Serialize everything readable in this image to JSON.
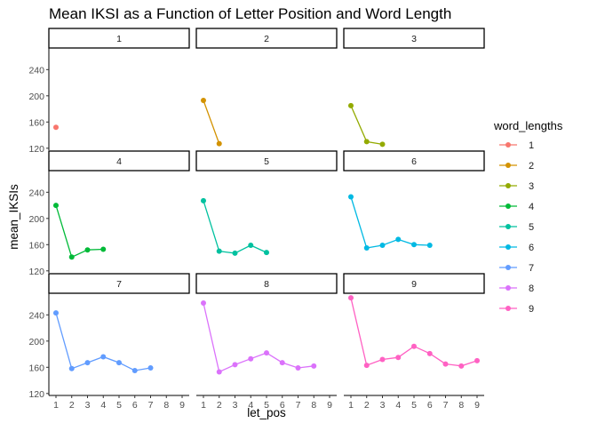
{
  "chart_data": {
    "type": "line",
    "title": "Mean IKSI as a Function of Letter Position and Word Length",
    "xlabel": "let_pos",
    "ylabel": "mean_IKSIs",
    "x_ticks": [
      1,
      2,
      3,
      4,
      5,
      6,
      7,
      8,
      9
    ],
    "y_ticks": [
      120,
      160,
      200,
      240
    ],
    "xlim": [
      0.55,
      9.45
    ],
    "ylim": [
      117,
      273
    ],
    "grid": false,
    "legend": {
      "title": "word_lengths",
      "position": "right",
      "entries": [
        "1",
        "2",
        "3",
        "4",
        "5",
        "6",
        "7",
        "8",
        "9"
      ]
    },
    "facets": [
      "1",
      "2",
      "3",
      "4",
      "5",
      "6",
      "7",
      "8",
      "9"
    ],
    "series": [
      {
        "name": "1",
        "color": "#F8766D",
        "x": [
          1
        ],
        "y": [
          152
        ]
      },
      {
        "name": "2",
        "color": "#D39200",
        "x": [
          1,
          2
        ],
        "y": [
          193,
          127
        ]
      },
      {
        "name": "3",
        "color": "#93AA00",
        "x": [
          1,
          2,
          3
        ],
        "y": [
          185,
          130,
          126
        ]
      },
      {
        "name": "4",
        "color": "#00BA38",
        "x": [
          1,
          2,
          3,
          4
        ],
        "y": [
          220,
          141,
          152,
          153
        ]
      },
      {
        "name": "5",
        "color": "#00C19F",
        "x": [
          1,
          2,
          3,
          4,
          5
        ],
        "y": [
          227,
          150,
          147,
          159,
          148
        ]
      },
      {
        "name": "6",
        "color": "#00B9E3",
        "x": [
          1,
          2,
          3,
          4,
          5,
          6
        ],
        "y": [
          233,
          155,
          159,
          168,
          160,
          159
        ]
      },
      {
        "name": "7",
        "color": "#619CFF",
        "x": [
          1,
          2,
          3,
          4,
          5,
          6,
          7
        ],
        "y": [
          243,
          158,
          167,
          176,
          167,
          155,
          159
        ]
      },
      {
        "name": "8",
        "color": "#DB72FB",
        "x": [
          1,
          2,
          3,
          4,
          5,
          6,
          7,
          8
        ],
        "y": [
          258,
          153,
          164,
          173,
          182,
          167,
          159,
          162
        ]
      },
      {
        "name": "9",
        "color": "#FF61C3",
        "x": [
          1,
          2,
          3,
          4,
          5,
          6,
          7,
          8,
          9
        ],
        "y": [
          266,
          163,
          172,
          175,
          192,
          181,
          165,
          162,
          170
        ]
      }
    ]
  }
}
